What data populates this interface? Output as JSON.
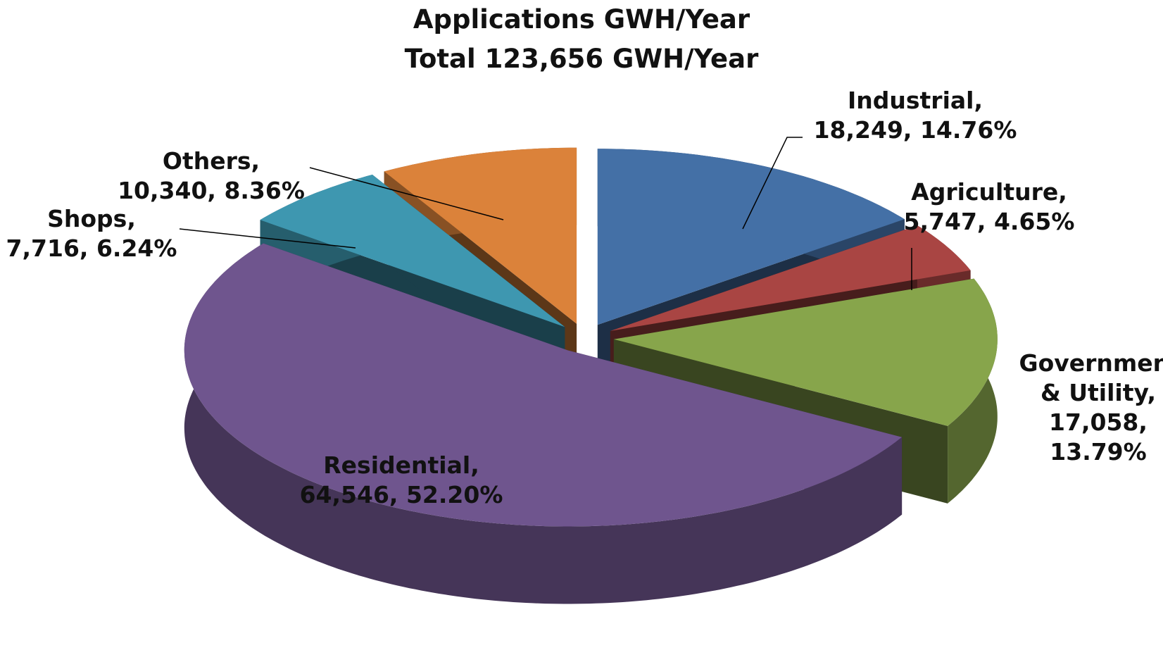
{
  "chart_data": {
    "type": "pie",
    "title": "Applications GWH/Year",
    "subtitle": "Total 123,656 GWH/Year",
    "categories": [
      "Industrial",
      "Agriculture",
      "Government & Utility",
      "Residential",
      "Shops",
      "Others"
    ],
    "values": [
      18249,
      5747,
      17058,
      64546,
      7716,
      10340
    ],
    "value_labels": [
      "18,249",
      "5,747",
      "17,058",
      "64,546",
      "7,716",
      "10,340"
    ],
    "percents": [
      14.76,
      4.65,
      13.79,
      52.2,
      6.24,
      8.36
    ],
    "percent_labels": [
      "14.76%",
      "4.65%",
      "13.79%",
      "52.20%",
      "6.24%",
      "8.36%"
    ],
    "colors": [
      "#4470a6",
      "#a94543",
      "#87a54b",
      "#6f558e",
      "#3e97b0",
      "#db823a"
    ]
  }
}
